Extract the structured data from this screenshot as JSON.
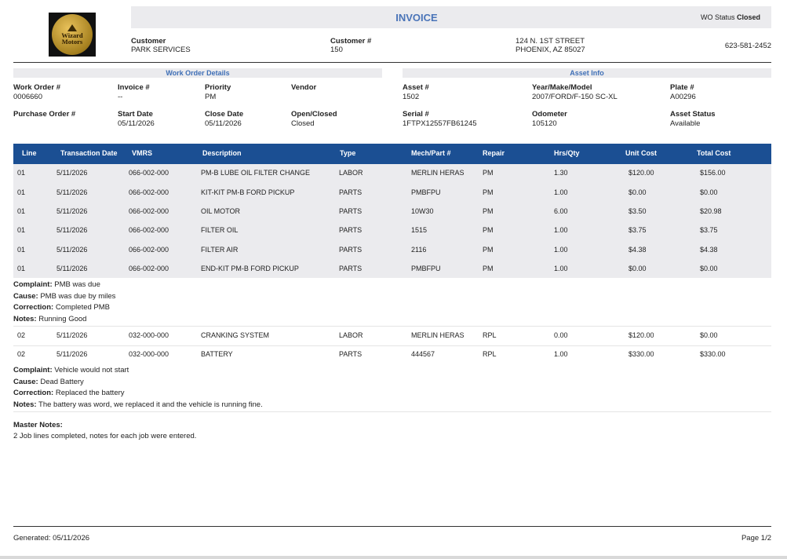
{
  "header": {
    "logo_text": [
      "Wizard",
      "Motors"
    ],
    "title": "INVOICE",
    "wo_status_label": "WO Status",
    "wo_status_value": "Closed"
  },
  "customer": {
    "customer_label": "Customer",
    "customer_name": "PARK SERVICES",
    "customer_no_label": "Customer #",
    "customer_no": "150",
    "address_line1": "124 N. 1ST STREET",
    "address_line2": "PHOENIX, AZ 85027",
    "phone": "623-581-2452"
  },
  "work_order_details": {
    "heading": "Work Order Details",
    "fields": [
      {
        "label": "Work Order #",
        "value": "0006660"
      },
      {
        "label": "Invoice #",
        "value": "--"
      },
      {
        "label": "Priority",
        "value": "PM"
      },
      {
        "label": "Vendor",
        "value": ""
      },
      {
        "label": "Purchase Order #",
        "value": ""
      },
      {
        "label": "Start Date",
        "value": "05/11/2026"
      },
      {
        "label": "Close Date",
        "value": "05/11/2026"
      },
      {
        "label": "Open/Closed",
        "value": "Closed"
      }
    ]
  },
  "asset_info": {
    "heading": "Asset Info",
    "fields": [
      {
        "label": "Asset #",
        "value": "1502"
      },
      {
        "label": "Year/Make/Model",
        "value": "2007/FORD/F-150 SC-XL"
      },
      {
        "label": "Plate #",
        "value": "A00296"
      },
      {
        "label": "Serial #",
        "value": "1FTPX12557FB61245"
      },
      {
        "label": "Odometer",
        "value": "105120"
      },
      {
        "label": "Asset Status",
        "value": "Available"
      }
    ]
  },
  "table": {
    "columns": [
      "Line",
      "Transaction Date",
      "VMRS",
      "Description",
      "Type",
      "Mech/Part #",
      "Repair",
      "Hrs/Qty",
      "Unit Cost",
      "Total Cost"
    ],
    "jobs": [
      {
        "rows": [
          [
            "01",
            "5/11/2026",
            "066-002-000",
            "PM-B LUBE OIL FILTER CHANGE",
            "LABOR",
            "MERLIN HERAS",
            "PM",
            "1.30",
            "$120.00",
            "$156.00"
          ],
          [
            "01",
            "5/11/2026",
            "066-002-000",
            "KIT-KIT PM-B FORD PICKUP",
            "PARTS",
            "PMBFPU",
            "PM",
            "1.00",
            "$0.00",
            "$0.00"
          ],
          [
            "01",
            "5/11/2026",
            "066-002-000",
            "OIL MOTOR",
            "PARTS",
            "10W30",
            "PM",
            "6.00",
            "$3.50",
            "$20.98"
          ],
          [
            "01",
            "5/11/2026",
            "066-002-000",
            "FILTER OIL",
            "PARTS",
            "1515",
            "PM",
            "1.00",
            "$3.75",
            "$3.75"
          ],
          [
            "01",
            "5/11/2026",
            "066-002-000",
            "FILTER AIR",
            "PARTS",
            "2116",
            "PM",
            "1.00",
            "$4.38",
            "$4.38"
          ],
          [
            "01",
            "5/11/2026",
            "066-002-000",
            "END-KIT PM-B FORD PICKUP",
            "PARTS",
            "PMBFPU",
            "PM",
            "1.00",
            "$0.00",
            "$0.00"
          ]
        ],
        "notes": [
          {
            "label": "Complaint:",
            "text": "PMB was due"
          },
          {
            "label": "Cause:",
            "text": "PMB was due by miles"
          },
          {
            "label": "Correction:",
            "text": "Completed PMB"
          },
          {
            "label": "Notes:",
            "text": "Running Good"
          }
        ]
      },
      {
        "rows": [
          [
            "02",
            "5/11/2026",
            "032-000-000",
            "CRANKING SYSTEM",
            "LABOR",
            "MERLIN HERAS",
            "RPL",
            "0.00",
            "$120.00",
            "$0.00"
          ],
          [
            "02",
            "5/11/2026",
            "032-000-000",
            "BATTERY",
            "PARTS",
            "444567",
            "RPL",
            "1.00",
            "$330.00",
            "$330.00"
          ]
        ],
        "notes": [
          {
            "label": "Complaint:",
            "text": "Vehicle would not start"
          },
          {
            "label": "Cause:",
            "text": "Dead Battery"
          },
          {
            "label": "Correction:",
            "text": "Replaced the battery"
          },
          {
            "label": "Notes:",
            "text": "The battery was word, we replaced it and the vehicle is running fine."
          }
        ]
      }
    ]
  },
  "master_notes": {
    "label": "Master Notes:",
    "text": "2 Job lines completed, notes for each job were entered."
  },
  "footer": {
    "generated": "Generated: 05/11/2026",
    "page": "Page 1/2"
  },
  "colors": {
    "accent_blue": "#1b4f93",
    "title_blue": "#4a74b8",
    "band_gray": "#ebebee"
  }
}
